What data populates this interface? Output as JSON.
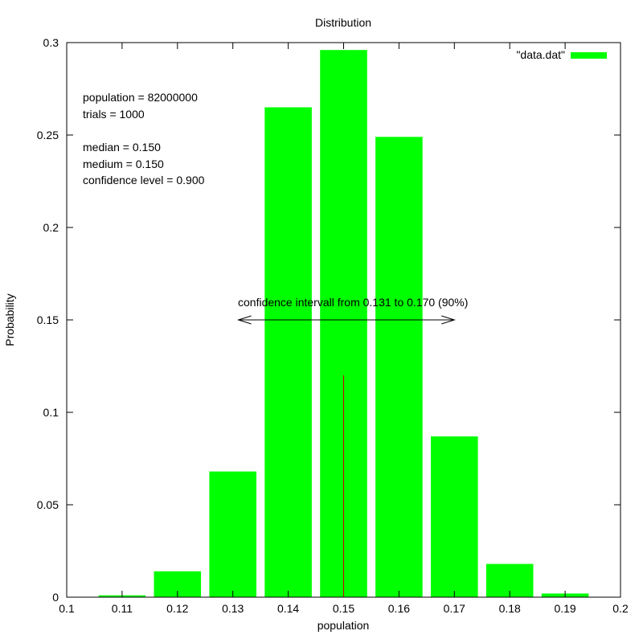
{
  "colors": {
    "bar": "#00ff00",
    "median": "#ff0000",
    "medium": "#0000ff",
    "text": "#000000",
    "median_line": "#cc0000"
  },
  "chart_data": {
    "type": "bar",
    "title": "Distribution",
    "xlabel": "population",
    "ylabel": "Probability",
    "xlim": [
      0.1,
      0.2
    ],
    "ylim": [
      0,
      0.3
    ],
    "bar_width": 0.0085,
    "xticks": [
      "0.1",
      "0.11",
      "0.12",
      "0.13",
      "0.14",
      "0.15",
      "0.16",
      "0.17",
      "0.18",
      "0.19",
      "0.2"
    ],
    "yticks": [
      "0",
      "0.05",
      "0.1",
      "0.15",
      "0.2",
      "0.25",
      "0.3"
    ],
    "legend": {
      "label": "\"data.dat\"",
      "position": "top-right"
    },
    "series": [
      {
        "name": "\"data.dat\"",
        "x": [
          0.11,
          0.12,
          0.13,
          0.14,
          0.15,
          0.16,
          0.17,
          0.18,
          0.19
        ],
        "values": [
          0.001,
          0.014,
          0.068,
          0.265,
          0.296,
          0.249,
          0.087,
          0.018,
          0.002
        ]
      }
    ],
    "annotations": {
      "population": "population = 82000000",
      "trials": "trials = 1000",
      "median": "median = 0.150",
      "medium": "medium = 0.150",
      "confidence_level": "confidence level = 0.900",
      "interval_label": "confidence intervall from 0.131 to 0.170 (90%)"
    },
    "confidence_interval": {
      "from": 0.131,
      "to": 0.17,
      "y": 0.15
    },
    "median_line": {
      "x": 0.15,
      "y_top": 0.12
    }
  }
}
